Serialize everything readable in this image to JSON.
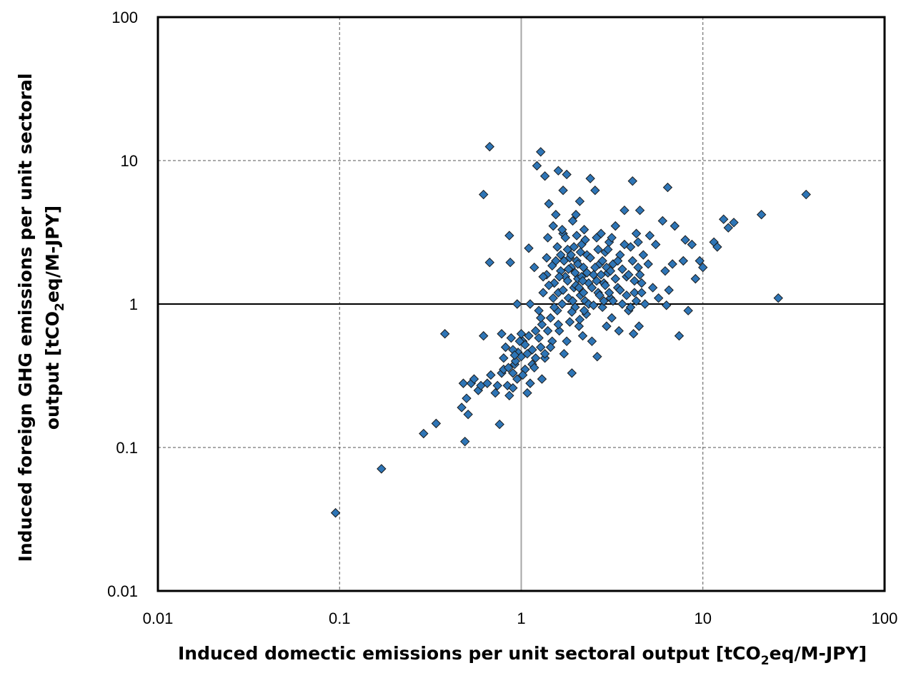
{
  "chart_data": {
    "type": "scatter",
    "title": "",
    "xlabel": {
      "pre": "Induced domectic emissions per unit sectoral output  [tCO",
      "sub": "2",
      "post": "eq/M-JPY]"
    },
    "ylabel": {
      "line1": "Induced foreign GHG emissions per unit sectoral",
      "line2_pre": "output [tCO",
      "line2_sub": "2",
      "line2_post": "eq/M-JPY]"
    },
    "x_scale": "log",
    "y_scale": "log",
    "xlim": [
      0.01,
      100
    ],
    "ylim": [
      0.01,
      100
    ],
    "x_ticks": [
      {
        "value": 0.01,
        "label": "0.01"
      },
      {
        "value": 0.1,
        "label": "0.1"
      },
      {
        "value": 1,
        "label": "1"
      },
      {
        "value": 10,
        "label": "10"
      },
      {
        "value": 100,
        "label": "100"
      }
    ],
    "y_ticks": [
      {
        "value": 0.01,
        "label": "0.01"
      },
      {
        "value": 0.1,
        "label": "0.1"
      },
      {
        "value": 1,
        "label": "1"
      },
      {
        "value": 10,
        "label": "10"
      },
      {
        "value": 100,
        "label": "100"
      }
    ],
    "grid": "dashed at decades; solid reference lines at x=1 and y=1",
    "marker": "diamond",
    "marker_color": "#2E75B6",
    "points": [
      [
        0.095,
        0.035
      ],
      [
        0.17,
        0.071
      ],
      [
        0.29,
        0.125
      ],
      [
        0.34,
        0.147
      ],
      [
        0.38,
        0.62
      ],
      [
        0.47,
        0.19
      ],
      [
        0.48,
        0.28
      ],
      [
        0.49,
        0.11
      ],
      [
        0.5,
        0.22
      ],
      [
        0.51,
        0.17
      ],
      [
        0.53,
        0.28
      ],
      [
        0.55,
        0.3
      ],
      [
        0.58,
        0.25
      ],
      [
        0.6,
        0.27
      ],
      [
        0.62,
        5.8
      ],
      [
        0.62,
        0.6
      ],
      [
        0.65,
        0.28
      ],
      [
        0.67,
        12.5
      ],
      [
        0.67,
        1.95
      ],
      [
        0.68,
        0.32
      ],
      [
        0.72,
        0.24
      ],
      [
        0.74,
        0.27
      ],
      [
        0.76,
        0.145
      ],
      [
        0.78,
        0.62
      ],
      [
        0.78,
        0.33
      ],
      [
        0.8,
        0.35
      ],
      [
        0.82,
        0.5
      ],
      [
        0.84,
        0.27
      ],
      [
        0.86,
        0.23
      ],
      [
        0.86,
        3.0
      ],
      [
        0.87,
        1.95
      ],
      [
        0.88,
        0.58
      ],
      [
        0.9,
        0.26
      ],
      [
        0.92,
        0.38
      ],
      [
        0.93,
        0.4
      ],
      [
        0.95,
        1.0
      ],
      [
        0.96,
        0.46
      ],
      [
        1.0,
        0.43
      ],
      [
        1.02,
        0.55
      ],
      [
        1.05,
        0.35
      ],
      [
        1.08,
        0.24
      ],
      [
        1.1,
        2.45
      ],
      [
        1.12,
        1.0
      ],
      [
        1.12,
        0.28
      ],
      [
        1.15,
        0.48
      ],
      [
        1.18,
        1.8
      ],
      [
        1.2,
        0.65
      ],
      [
        1.22,
        9.2
      ],
      [
        1.25,
        0.9
      ],
      [
        1.28,
        11.5
      ],
      [
        1.28,
        0.5
      ],
      [
        1.3,
        0.3
      ],
      [
        1.32,
        1.2
      ],
      [
        1.35,
        7.8
      ],
      [
        1.35,
        0.42
      ],
      [
        1.38,
        1.6
      ],
      [
        1.4,
        2.9
      ],
      [
        1.42,
        5.0
      ],
      [
        1.45,
        0.8
      ],
      [
        1.48,
        0.55
      ],
      [
        1.5,
        3.5
      ],
      [
        1.52,
        1.4
      ],
      [
        1.55,
        4.2
      ],
      [
        1.58,
        0.9
      ],
      [
        1.6,
        8.5
      ],
      [
        1.6,
        1.2
      ],
      [
        1.62,
        0.65
      ],
      [
        1.65,
        2.2
      ],
      [
        1.68,
        1.0
      ],
      [
        1.7,
        6.2
      ],
      [
        1.7,
        3.1
      ],
      [
        1.72,
        0.45
      ],
      [
        1.75,
        1.55
      ],
      [
        1.78,
        8.0
      ],
      [
        1.8,
        2.4
      ],
      [
        1.82,
        1.1
      ],
      [
        1.85,
        0.75
      ],
      [
        1.88,
        1.8
      ],
      [
        1.9,
        0.33
      ],
      [
        1.92,
        3.8
      ],
      [
        1.95,
        1.3
      ],
      [
        1.98,
        0.95
      ],
      [
        2.0,
        4.2
      ],
      [
        2.02,
        2.0
      ],
      [
        2.05,
        1.5
      ],
      [
        2.08,
        0.7
      ],
      [
        2.1,
        5.2
      ],
      [
        2.12,
        1.15
      ],
      [
        2.15,
        2.6
      ],
      [
        2.18,
        0.6
      ],
      [
        2.2,
        1.8
      ],
      [
        2.22,
        3.3
      ],
      [
        2.25,
        1.05
      ],
      [
        2.28,
        0.85
      ],
      [
        2.3,
        2.2
      ],
      [
        2.35,
        1.4
      ],
      [
        2.4,
        7.5
      ],
      [
        2.45,
        0.55
      ],
      [
        2.5,
        1.6
      ],
      [
        2.55,
        6.2
      ],
      [
        2.6,
        2.9
      ],
      [
        2.62,
        0.43
      ],
      [
        2.65,
        1.2
      ],
      [
        2.7,
        1.9
      ],
      [
        2.75,
        3.1
      ],
      [
        2.8,
        0.95
      ],
      [
        2.85,
        1.4
      ],
      [
        2.9,
        2.3
      ],
      [
        2.95,
        0.7
      ],
      [
        3.0,
        1.65
      ],
      [
        3.05,
        2.7
      ],
      [
        3.1,
        1.1
      ],
      [
        3.15,
        0.8
      ],
      [
        3.2,
        1.9
      ],
      [
        3.3,
        3.5
      ],
      [
        3.4,
        1.3
      ],
      [
        3.45,
        0.65
      ],
      [
        3.5,
        2.2
      ],
      [
        3.6,
        1.0
      ],
      [
        3.7,
        4.5
      ],
      [
        3.8,
        1.55
      ],
      [
        3.9,
        0.9
      ],
      [
        4.0,
        2.5
      ],
      [
        4.1,
        7.2
      ],
      [
        4.15,
        0.62
      ],
      [
        4.2,
        1.2
      ],
      [
        4.3,
        3.1
      ],
      [
        4.4,
        1.8
      ],
      [
        4.45,
        0.7
      ],
      [
        4.5,
        4.5
      ],
      [
        4.6,
        1.4
      ],
      [
        4.7,
        2.2
      ],
      [
        4.8,
        1.0
      ],
      [
        5.0,
        1.9
      ],
      [
        5.1,
        3.0
      ],
      [
        5.3,
        1.3
      ],
      [
        5.5,
        2.6
      ],
      [
        5.7,
        1.1
      ],
      [
        6.0,
        3.8
      ],
      [
        6.2,
        1.7
      ],
      [
        6.3,
        0.98
      ],
      [
        6.4,
        6.5
      ],
      [
        6.5,
        1.25
      ],
      [
        6.8,
        1.9
      ],
      [
        7.0,
        3.5
      ],
      [
        7.4,
        0.6
      ],
      [
        7.8,
        2.0
      ],
      [
        8.0,
        2.8
      ],
      [
        8.3,
        0.9
      ],
      [
        8.7,
        2.6
      ],
      [
        9.1,
        1.5
      ],
      [
        9.6,
        2.0
      ],
      [
        10.0,
        1.8
      ],
      [
        11.5,
        2.7
      ],
      [
        12.0,
        2.5
      ],
      [
        13.0,
        3.9
      ],
      [
        13.8,
        3.4
      ],
      [
        14.8,
        3.7
      ],
      [
        21.0,
        4.2
      ],
      [
        26.0,
        1.1
      ],
      [
        37.0,
        5.8
      ],
      [
        1.5,
        1.1
      ],
      [
        1.55,
        2.0
      ],
      [
        1.6,
        0.72
      ],
      [
        1.65,
        1.7
      ],
      [
        1.7,
        1.25
      ],
      [
        1.75,
        2.9
      ],
      [
        1.8,
        1.45
      ],
      [
        1.85,
        2.1
      ],
      [
        1.9,
        0.88
      ],
      [
        1.95,
        2.5
      ],
      [
        2.0,
        1.35
      ],
      [
        2.05,
        1.9
      ],
      [
        2.1,
        0.78
      ],
      [
        2.15,
        1.55
      ],
      [
        2.2,
        1.2
      ],
      [
        2.25,
        2.8
      ],
      [
        2.3,
        1.65
      ],
      [
        2.35,
        1.0
      ],
      [
        2.4,
        2.1
      ],
      [
        2.45,
        1.3
      ],
      [
        2.5,
        0.98
      ],
      [
        2.55,
        1.8
      ],
      [
        2.6,
        1.45
      ],
      [
        2.65,
        2.4
      ],
      [
        2.7,
        1.15
      ],
      [
        2.75,
        1.6
      ],
      [
        2.8,
        2.0
      ],
      [
        2.85,
        1.05
      ],
      [
        2.9,
        1.35
      ],
      [
        2.95,
        1.8
      ],
      [
        3.0,
        2.4
      ],
      [
        3.05,
        1.2
      ],
      [
        3.1,
        1.7
      ],
      [
        3.15,
        2.9
      ],
      [
        3.2,
        1.05
      ],
      [
        3.3,
        1.5
      ],
      [
        3.4,
        2.0
      ],
      [
        3.5,
        1.25
      ],
      [
        3.6,
        1.75
      ],
      [
        3.7,
        2.6
      ],
      [
        3.8,
        1.15
      ],
      [
        3.9,
        1.6
      ],
      [
        4.0,
        0.95
      ],
      [
        4.1,
        2.0
      ],
      [
        4.2,
        1.45
      ],
      [
        4.3,
        1.05
      ],
      [
        4.4,
        2.7
      ],
      [
        4.5,
        1.6
      ],
      [
        4.6,
        1.2
      ],
      [
        1.0,
        0.62
      ],
      [
        1.05,
        0.52
      ],
      [
        1.1,
        0.6
      ],
      [
        1.15,
        0.38
      ],
      [
        1.2,
        0.42
      ],
      [
        1.25,
        0.58
      ],
      [
        1.3,
        0.72
      ],
      [
        1.35,
        0.45
      ],
      [
        1.4,
        0.65
      ],
      [
        1.45,
        0.5
      ],
      [
        0.8,
        0.42
      ],
      [
        0.85,
        0.36
      ],
      [
        0.9,
        0.48
      ],
      [
        0.95,
        0.3
      ],
      [
        0.98,
        0.55
      ],
      [
        0.9,
        0.33
      ],
      [
        0.92,
        0.44
      ],
      [
        1.02,
        0.32
      ],
      [
        1.08,
        0.45
      ],
      [
        1.18,
        0.36
      ],
      [
        1.28,
        0.8
      ],
      [
        1.32,
        1.55
      ],
      [
        1.38,
        2.1
      ],
      [
        1.42,
        1.35
      ],
      [
        1.48,
        1.85
      ],
      [
        1.52,
        0.95
      ],
      [
        1.58,
        2.5
      ],
      [
        1.62,
        1.55
      ],
      [
        1.68,
        3.3
      ],
      [
        1.72,
        2.0
      ],
      [
        1.78,
        0.55
      ],
      [
        1.82,
        1.75
      ],
      [
        1.88,
        2.2
      ],
      [
        1.92,
        1.05
      ],
      [
        1.98,
        1.65
      ],
      [
        2.02,
        3.0
      ],
      [
        2.08,
        1.3
      ],
      [
        2.12,
        2.3
      ],
      [
        2.18,
        1.45
      ],
      [
        2.22,
        0.9
      ]
    ]
  }
}
